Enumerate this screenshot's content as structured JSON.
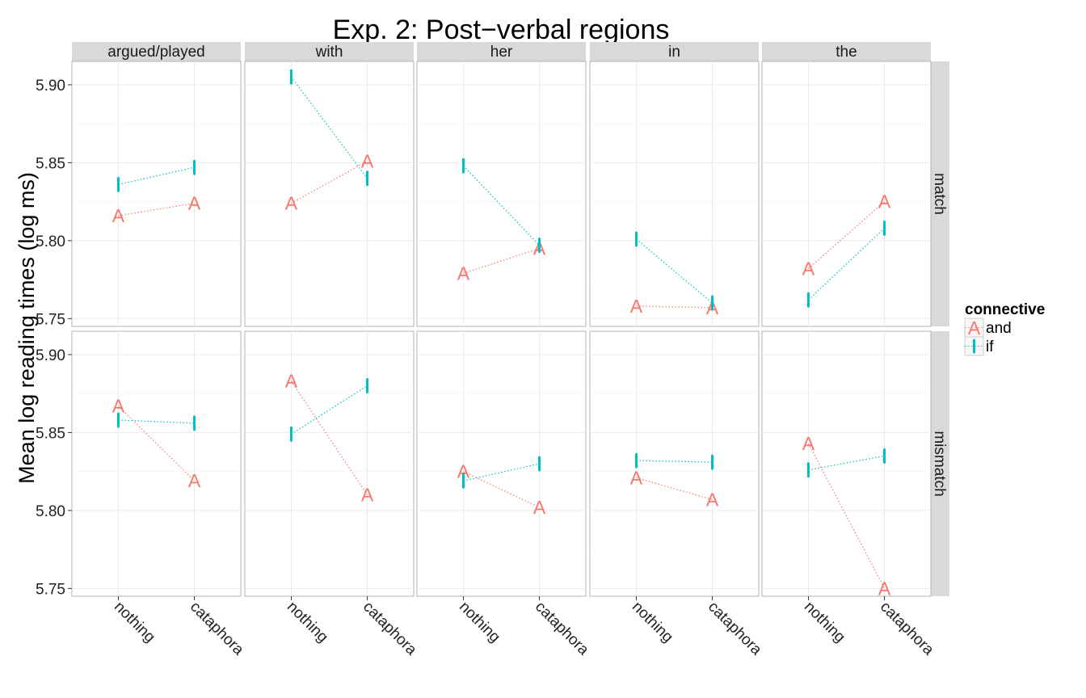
{
  "chart_data": {
    "type": "line",
    "title": "Exp. 2: Post−verbal regions",
    "ylabel": "Mean log reading times (log ms)",
    "xlabel": "",
    "facet_columns": [
      "argued/played",
      "with",
      "her",
      "in",
      "the"
    ],
    "facet_rows": [
      "match",
      "mismatch"
    ],
    "categories": [
      "nothing",
      "cataphora"
    ],
    "ylim": [
      5.745,
      5.915
    ],
    "yticks": [
      "5.75",
      "5.80",
      "5.85",
      "5.90"
    ],
    "grid": true,
    "legend": {
      "title": "connective",
      "position": "right",
      "entries": [
        {
          "name": "and",
          "symbol": "A",
          "color": "#F8766D"
        },
        {
          "name": "if",
          "symbol": "|",
          "color": "#00BFC4"
        }
      ]
    },
    "series": [
      {
        "name": "and",
        "color": "#F8766D",
        "symbol": "A",
        "panels": {
          "match": {
            "argued/played": [
              5.816,
              5.824
            ],
            "with": [
              5.824,
              5.851
            ],
            "her": [
              5.779,
              5.795
            ],
            "in": [
              5.758,
              5.757
            ],
            "the": [
              5.782,
              5.825
            ]
          },
          "mismatch": {
            "argued/played": [
              5.867,
              5.819
            ],
            "with": [
              5.883,
              5.81
            ],
            "her": [
              5.825,
              5.802
            ],
            "in": [
              5.821,
              5.807
            ],
            "the": [
              5.843,
              5.75
            ]
          }
        }
      },
      {
        "name": "if",
        "color": "#00BFC4",
        "symbol": "|",
        "panels": {
          "match": {
            "argued/played": [
              5.836,
              5.847
            ],
            "with": [
              5.905,
              5.84
            ],
            "her": [
              5.848,
              5.797
            ],
            "in": [
              5.801,
              5.76
            ],
            "the": [
              5.762,
              5.808
            ]
          },
          "mismatch": {
            "argued/played": [
              5.858,
              5.856
            ],
            "with": [
              5.849,
              5.88
            ],
            "her": [
              5.819,
              5.83
            ],
            "in": [
              5.832,
              5.831
            ],
            "the": [
              5.826,
              5.835
            ]
          }
        }
      }
    ]
  }
}
